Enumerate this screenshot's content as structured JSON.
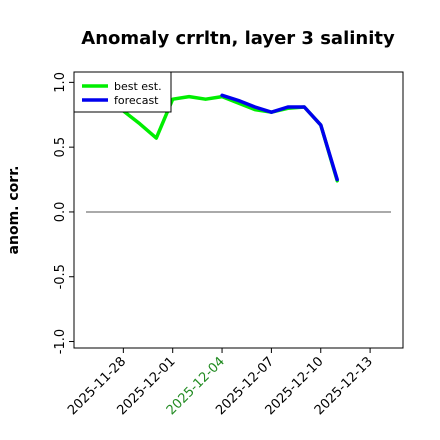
{
  "chart_data": {
    "type": "line",
    "title": "Anomaly crrltn, layer 3 salinity",
    "xlabel": "",
    "ylabel": "anom. corr.",
    "ylim": [
      -1.05,
      1.08
    ],
    "xlim": [
      "2025-11-25",
      "2025-12-15"
    ],
    "y_ticks": [
      {
        "value": -1.0,
        "label": "-1.0"
      },
      {
        "value": -0.5,
        "label": "-0.5"
      },
      {
        "value": 0.0,
        "label": "0.0"
      },
      {
        "value": 0.5,
        "label": "0.5"
      },
      {
        "value": 1.0,
        "label": "1.0"
      }
    ],
    "x_ticks": [
      {
        "date": "2025-11-28",
        "label": "2025-11-28",
        "color": "#000000"
      },
      {
        "date": "2025-12-01",
        "label": "2025-12-01",
        "color": "#000000"
      },
      {
        "date": "2025-12-04",
        "label": "2025-12-04",
        "color": "#228B22"
      },
      {
        "date": "2025-12-07",
        "label": "2025-12-07",
        "color": "#000000"
      },
      {
        "date": "2025-12-10",
        "label": "2025-12-10",
        "color": "#000000"
      },
      {
        "date": "2025-12-13",
        "label": "2025-12-13",
        "color": "#000000"
      }
    ],
    "zero_line": 0.0,
    "legend_position": "top-left",
    "grid": false,
    "series": [
      {
        "name": "best est.",
        "color": "#00ee00",
        "points": [
          {
            "x": "2025-11-28",
            "y": 0.78
          },
          {
            "x": "2025-11-29",
            "y": 0.68
          },
          {
            "x": "2025-11-30",
            "y": 0.57
          },
          {
            "x": "2025-12-01",
            "y": 0.87
          },
          {
            "x": "2025-12-02",
            "y": 0.89
          },
          {
            "x": "2025-12-03",
            "y": 0.87
          },
          {
            "x": "2025-12-04",
            "y": 0.89
          },
          {
            "x": "2025-12-05",
            "y": 0.84
          },
          {
            "x": "2025-12-06",
            "y": 0.79
          },
          {
            "x": "2025-12-07",
            "y": 0.77
          },
          {
            "x": "2025-12-08",
            "y": 0.8
          },
          {
            "x": "2025-12-09",
            "y": 0.81
          },
          {
            "x": "2025-12-10",
            "y": 0.67
          },
          {
            "x": "2025-12-11",
            "y": 0.24
          }
        ]
      },
      {
        "name": "forecast",
        "color": "#0000ee",
        "points": [
          {
            "x": "2025-12-04",
            "y": 0.9
          },
          {
            "x": "2025-12-05",
            "y": 0.86
          },
          {
            "x": "2025-12-06",
            "y": 0.81
          },
          {
            "x": "2025-12-07",
            "y": 0.77
          },
          {
            "x": "2025-12-08",
            "y": 0.81
          },
          {
            "x": "2025-12-09",
            "y": 0.81
          },
          {
            "x": "2025-12-10",
            "y": 0.67
          },
          {
            "x": "2025-12-11",
            "y": 0.25
          }
        ]
      }
    ]
  }
}
